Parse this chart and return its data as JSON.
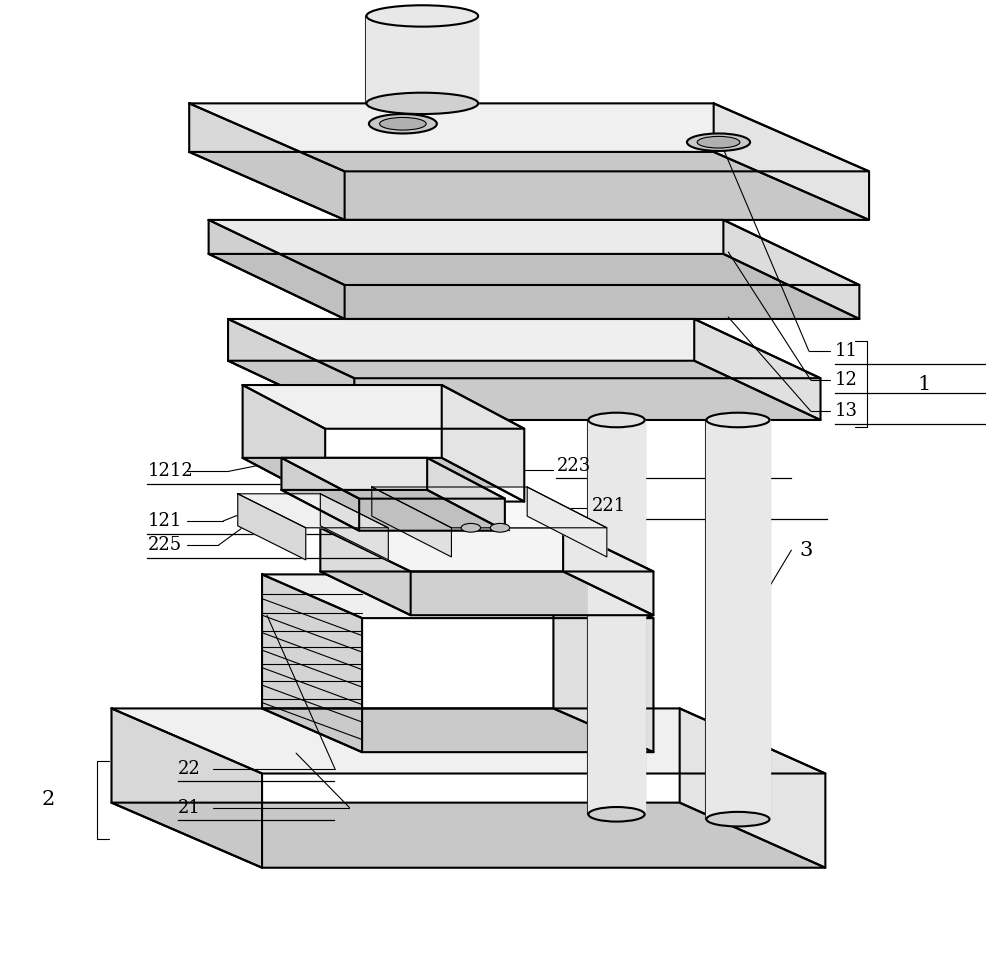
{
  "bg_color": "#ffffff",
  "line_color": "#000000",
  "line_width": 1.5,
  "figure_width": 10.0,
  "figure_height": 9.74,
  "dpi": 100
}
